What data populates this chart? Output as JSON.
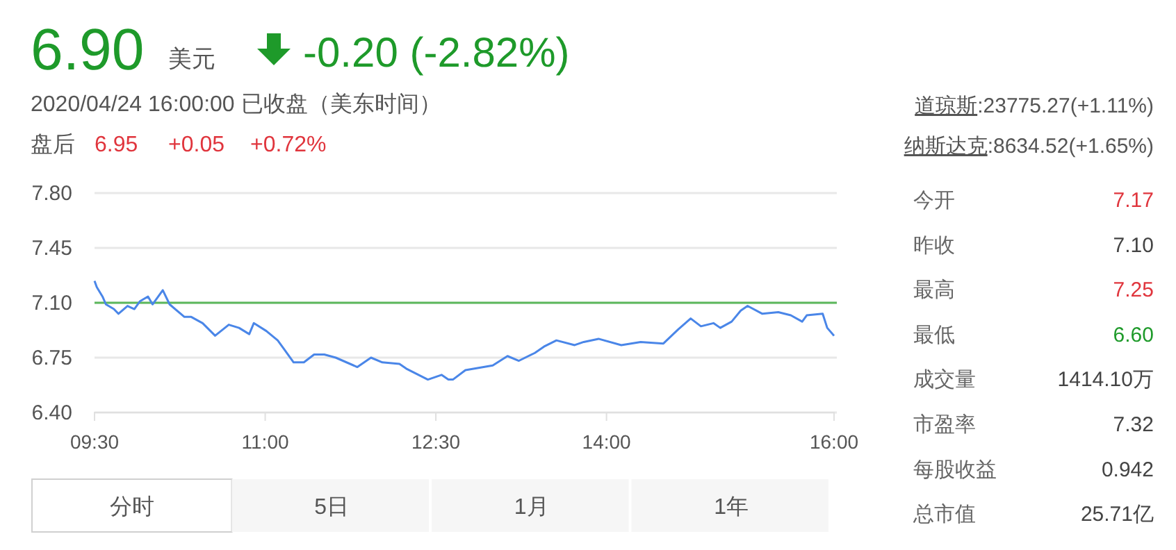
{
  "chart_data": [
    {
      "type": "line",
      "annotations": [
        "6.90",
        "美元",
        "-0.20 (-2.82%)",
        "2020/04/24 16:00:00 已收盘（美东时间）",
        "盘后",
        "6.95",
        "+0.05",
        "+0.72%",
        "道琼斯",
        ":23775.27(+1.11%)",
        "纳斯达克",
        ":8634.52(+1.65%)",
        "分时",
        "5日",
        "1月",
        "1年"
      ],
      "xlim": [
        9.5,
        16
      ],
      "xticks": [
        {
          "value": 9.5,
          "label": "09:30"
        },
        {
          "value": 11,
          "label": "11:00"
        },
        {
          "value": 12.5,
          "label": "12:30"
        },
        {
          "value": 14,
          "label": "14:00"
        },
        {
          "value": 16,
          "label": "16:00"
        }
      ],
      "ylim": [
        6.4,
        7.8
      ],
      "yticks": [
        {
          "value": 6.4,
          "label": "6.40"
        },
        {
          "value": 6.75,
          "label": "6.75"
        },
        {
          "value": 7.1,
          "label": "7.10"
        },
        {
          "value": 7.45,
          "label": "7.45"
        },
        {
          "value": 7.8,
          "label": "7.80"
        }
      ],
      "grid": "y",
      "marker": "none",
      "line_style": "solid",
      "ref_lines": [
        {
          "axis": "y",
          "value": 7.1,
          "color": "#5cb85c"
        }
      ],
      "series": [
        {
          "color": "#4a86e8",
          "x": [
            9.5,
            9.52,
            9.57,
            9.6,
            9.67,
            9.71,
            9.79,
            9.85,
            9.9,
            9.97,
            10.01,
            10.1,
            10.16,
            10.29,
            10.35,
            10.45,
            10.56,
            10.68,
            10.77,
            10.86,
            10.9,
            11.01,
            11.11,
            11.17,
            11.25,
            11.34,
            11.43,
            11.52,
            11.62,
            11.81,
            11.93,
            12.03,
            12.18,
            12.24,
            12.43,
            12.55,
            12.61,
            12.65,
            12.76,
            13.0,
            13.13,
            13.23,
            13.37,
            13.45,
            13.56,
            13.72,
            13.8,
            13.93,
            14.13,
            14.3,
            14.5,
            14.63,
            14.74,
            14.83,
            14.94,
            15.0,
            15.1,
            15.18,
            15.24,
            15.37,
            15.51,
            15.62,
            15.72,
            15.76,
            15.9,
            15.94,
            16.0
          ],
          "values": [
            7.24,
            7.2,
            7.14,
            7.09,
            7.06,
            7.03,
            7.08,
            7.06,
            7.11,
            7.14,
            7.09,
            7.18,
            7.09,
            7.01,
            7.01,
            6.97,
            6.89,
            6.96,
            6.94,
            6.9,
            6.97,
            6.92,
            6.86,
            6.8,
            6.72,
            6.72,
            6.77,
            6.77,
            6.75,
            6.69,
            6.75,
            6.72,
            6.71,
            6.68,
            6.61,
            6.64,
            6.61,
            6.61,
            6.67,
            6.7,
            6.76,
            6.73,
            6.78,
            6.82,
            6.86,
            6.83,
            6.85,
            6.87,
            6.83,
            6.85,
            6.84,
            6.93,
            7.0,
            6.95,
            6.97,
            6.94,
            6.98,
            7.05,
            7.08,
            7.03,
            7.04,
            7.02,
            6.98,
            7.02,
            7.03,
            6.94,
            6.89
          ]
        }
      ]
    },
    {
      "type": "other",
      "categories": [
        "今开",
        "昨收",
        "最高",
        "最低",
        "成交量",
        "市盈率",
        "每股收益",
        "总市值"
      ],
      "value_labels": [
        "7.17",
        "7.10",
        "7.25",
        "6.60",
        "1414.10万",
        "7.32",
        "0.942",
        "25.71亿"
      ],
      "colors": [
        "#e0353d",
        "#444444",
        "#e0353d",
        "#1e9a2a",
        "#444444",
        "#444444",
        "#444444",
        "#444444"
      ]
    }
  ]
}
